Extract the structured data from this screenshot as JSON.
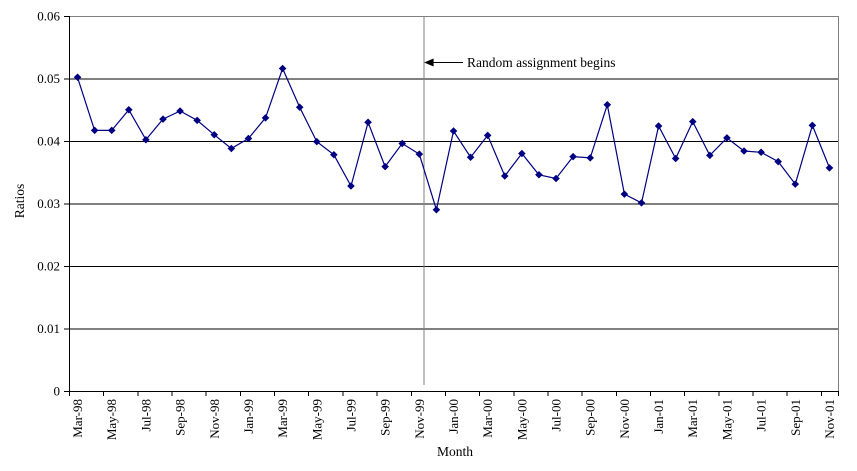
{
  "chart_data": {
    "type": "line",
    "title": "",
    "xlabel": "Month",
    "ylabel": "Ratios",
    "ylim": [
      0,
      0.06
    ],
    "grid": true,
    "legend": false,
    "marker": "diamond",
    "colors": {
      "series": "#000080",
      "gridline": "#000000",
      "axis": "#000000",
      "plot_border": "#808080",
      "vline": "#808080",
      "background": "#ffffff",
      "text": "#000000"
    },
    "y_ticks": [
      0,
      0.01,
      0.02,
      0.03,
      0.04,
      0.05,
      0.06
    ],
    "y_tick_labels": [
      "0",
      "0.01",
      "0.02",
      "0.03",
      "0.04",
      "0.05",
      "0.06"
    ],
    "x_tick_labels": [
      "Mar-98",
      "May-98",
      "Jul-98",
      "Sep-98",
      "Nov-98",
      "Jan-99",
      "Mar-99",
      "May-99",
      "Jul-99",
      "Sep-99",
      "Nov-99",
      "Jan-00",
      "Mar-00",
      "May-00",
      "Jul-00",
      "Sep-00",
      "Nov-00",
      "Jan-01",
      "Mar-01",
      "May-01",
      "Jul-01",
      "Sep-01",
      "Nov-01"
    ],
    "categories": [
      "Mar-98",
      "Apr-98",
      "May-98",
      "Jun-98",
      "Jul-98",
      "Aug-98",
      "Sep-98",
      "Oct-98",
      "Nov-98",
      "Dec-98",
      "Jan-99",
      "Feb-99",
      "Mar-99",
      "Apr-99",
      "May-99",
      "Jun-99",
      "Jul-99",
      "Aug-99",
      "Sep-99",
      "Oct-99",
      "Nov-99",
      "Dec-99",
      "Jan-00",
      "Feb-00",
      "Mar-00",
      "Apr-00",
      "May-00",
      "Jun-00",
      "Jul-00",
      "Aug-00",
      "Sep-00",
      "Oct-00",
      "Nov-00",
      "Dec-00",
      "Jan-01",
      "Feb-01",
      "Mar-01",
      "Apr-01",
      "May-01",
      "Jun-01",
      "Jul-01",
      "Aug-01",
      "Sep-01",
      "Oct-01",
      "Nov-01"
    ],
    "values": [
      0.0502,
      0.0417,
      0.0417,
      0.045,
      0.0402,
      0.0435,
      0.0448,
      0.0433,
      0.041,
      0.0388,
      0.0404,
      0.0437,
      0.0516,
      0.0454,
      0.0399,
      0.0378,
      0.0328,
      0.043,
      0.0359,
      0.0396,
      0.0379,
      0.029,
      0.0416,
      0.0374,
      0.0409,
      0.0344,
      0.038,
      0.0346,
      0.034,
      0.0375,
      0.0373,
      0.0458,
      0.0315,
      0.0301,
      0.0424,
      0.0372,
      0.0431,
      0.0377,
      0.0405,
      0.0384,
      0.0382,
      0.0367,
      0.0331,
      0.0425,
      0.0357
    ],
    "annotation": {
      "text": "Random assignment begins",
      "arrow": "left",
      "vline_between": [
        "Nov-99",
        "Dec-99"
      ],
      "x_index": 20.25
    }
  }
}
